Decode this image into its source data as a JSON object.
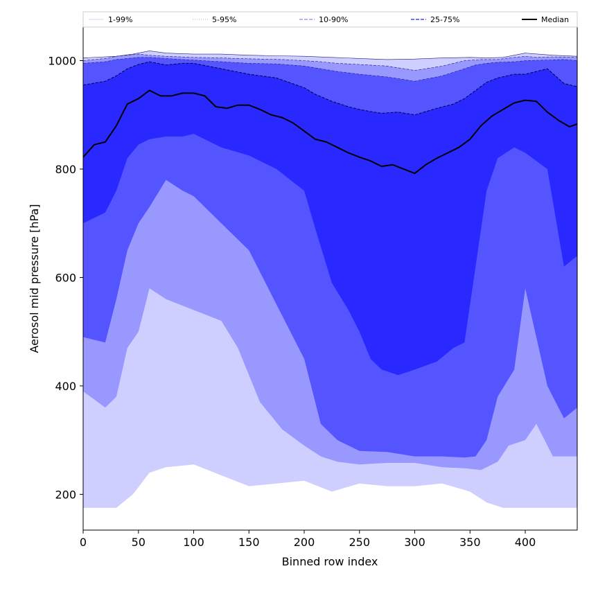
{
  "chart_data": {
    "type": "area",
    "title": "",
    "xlabel": "Binned row index",
    "ylabel": "Aerosol mid pressure [hPa]",
    "xlim": [
      0,
      447
    ],
    "ylim": [
      134,
      1062
    ],
    "xticks": [
      0,
      50,
      100,
      150,
      200,
      250,
      300,
      350,
      400
    ],
    "yticks": [
      200,
      400,
      600,
      800,
      1000
    ],
    "grid": false,
    "legend_placement": "top",
    "legend": [
      {
        "label": "1-99%",
        "color": "#d6d6ff",
        "dash": "solid",
        "width": 1
      },
      {
        "label": "5-95%",
        "color": "#aaaaee",
        "dash": "dotted",
        "width": 1
      },
      {
        "label": "10-90%",
        "color": "#8888ff",
        "dash": "dashed",
        "width": 1.2
      },
      {
        "label": "25-75%",
        "color": "#4444ff",
        "dash": "dashed",
        "width": 1.5
      },
      {
        "label": "Median",
        "color": "#000000",
        "dash": "solid",
        "width": 2
      }
    ],
    "bands": [
      {
        "name": "1-99%",
        "fill": "#cfcfff",
        "x": [
          0,
          30,
          45,
          60,
          75,
          100,
          125,
          150,
          175,
          200,
          225,
          250,
          275,
          300,
          325,
          350,
          365,
          380,
          400,
          425,
          447
        ],
        "lower": [
          175,
          175,
          200,
          240,
          250,
          255,
          235,
          215,
          220,
          225,
          205,
          220,
          215,
          215,
          220,
          205,
          185,
          175,
          175,
          175,
          175
        ],
        "upper": [
          1005,
          1008,
          1012,
          1018,
          1014,
          1012,
          1012,
          1010,
          1009,
          1008,
          1006,
          1004,
          1002,
          1003,
          1005,
          1006,
          1005,
          1006,
          1014,
          1010,
          1008
        ]
      },
      {
        "name": "5-95%",
        "fill": "#9898ff",
        "x": [
          0,
          20,
          30,
          40,
          50,
          60,
          75,
          100,
          125,
          140,
          160,
          180,
          200,
          215,
          230,
          250,
          275,
          300,
          325,
          345,
          360,
          375,
          385,
          400,
          410,
          425,
          447
        ],
        "lower": [
          390,
          360,
          380,
          470,
          500,
          580,
          560,
          540,
          520,
          470,
          370,
          320,
          290,
          270,
          260,
          255,
          258,
          258,
          250,
          248,
          245,
          260,
          290,
          300,
          330,
          270,
          270
        ],
        "upper": [
          1000,
          1004,
          1008,
          1010,
          1012,
          1010,
          1008,
          1006,
          1005,
          1004,
          1003,
          1002,
          1000,
          998,
          995,
          993,
          990,
          982,
          990,
          1000,
          1002,
          1002,
          1005,
          1008,
          1006,
          1007,
          1006
        ]
      },
      {
        "name": "10-90%",
        "fill": "#5555ff",
        "x": [
          0,
          20,
          30,
          40,
          50,
          60,
          75,
          90,
          100,
          125,
          150,
          175,
          200,
          215,
          230,
          250,
          275,
          300,
          325,
          345,
          355,
          365,
          375,
          390,
          400,
          420,
          435,
          447
        ],
        "lower": [
          490,
          480,
          560,
          650,
          700,
          730,
          780,
          760,
          750,
          700,
          650,
          550,
          450,
          330,
          300,
          280,
          278,
          270,
          270,
          268,
          270,
          300,
          380,
          430,
          580,
          400,
          340,
          360
        ],
        "upper": [
          995,
          998,
          1002,
          1004,
          1006,
          1006,
          1004,
          1002,
          1001,
          998,
          995,
          994,
          990,
          985,
          980,
          975,
          970,
          962,
          972,
          985,
          992,
          995,
          997,
          998,
          1000,
          1001,
          1002,
          1000
        ]
      },
      {
        "name": "25-75%",
        "fill": "#2828ff",
        "x": [
          0,
          20,
          30,
          40,
          50,
          60,
          75,
          90,
          100,
          125,
          150,
          175,
          200,
          210,
          225,
          240,
          250,
          260,
          270,
          285,
          300,
          320,
          335,
          345,
          355,
          365,
          375,
          390,
          400,
          420,
          435,
          447
        ],
        "lower": [
          700,
          720,
          760,
          820,
          845,
          855,
          860,
          860,
          865,
          840,
          825,
          800,
          760,
          690,
          590,
          540,
          500,
          450,
          430,
          420,
          430,
          445,
          470,
          480,
          620,
          760,
          820,
          840,
          830,
          800,
          620,
          640
        ],
        "upper": [
          955,
          962,
          972,
          985,
          993,
          998,
          992,
          995,
          995,
          985,
          975,
          968,
          950,
          938,
          925,
          915,
          910,
          906,
          903,
          905,
          900,
          912,
          920,
          930,
          945,
          960,
          968,
          975,
          975,
          985,
          958,
          952
        ]
      }
    ],
    "median": {
      "x": [
        0,
        10,
        20,
        30,
        40,
        50,
        60,
        70,
        80,
        90,
        100,
        110,
        120,
        130,
        140,
        150,
        160,
        170,
        180,
        190,
        200,
        210,
        220,
        230,
        240,
        250,
        260,
        270,
        280,
        290,
        300,
        310,
        320,
        330,
        340,
        350,
        360,
        370,
        380,
        390,
        400,
        410,
        420,
        430,
        440,
        447
      ],
      "y": [
        822,
        845,
        850,
        880,
        920,
        930,
        945,
        935,
        935,
        940,
        940,
        935,
        915,
        912,
        918,
        918,
        910,
        900,
        895,
        885,
        870,
        855,
        850,
        840,
        830,
        822,
        815,
        805,
        808,
        800,
        792,
        808,
        820,
        830,
        840,
        855,
        880,
        898,
        910,
        922,
        927,
        925,
        905,
        890,
        878,
        883
      ]
    }
  }
}
